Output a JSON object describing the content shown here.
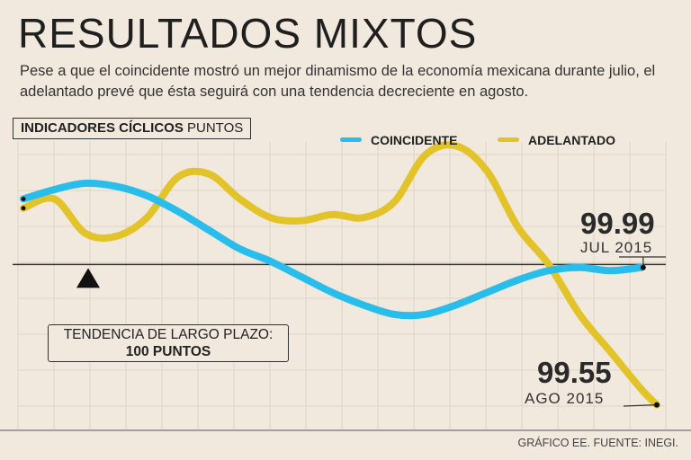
{
  "title": "RESULTADOS MIXTOS",
  "subtitle": "Pese a que el coincidente mostró un mejor dinamismo de la economía mexicana durante julio, el adelantado prevé que ésta seguirá con una tendencia decreciente en agosto.",
  "box_label": {
    "bold": "INDICADORES CÍCLICOS",
    "normal": "PUNTOS"
  },
  "colors": {
    "coincidente": "#29bdec",
    "adelantado": "#e2c32a",
    "reference": "#333333",
    "grid": "#dfd3c4",
    "background": "#f1e8de"
  },
  "trend_box": {
    "line1": "TENDENCIA DE LARGO PLAZO:",
    "line2": "100 PUNTOS"
  },
  "callouts": {
    "coincidente": {
      "value": "99.99",
      "date": "JUL 2015"
    },
    "adelantado": {
      "value": "99.55",
      "date": "AGO 2015"
    }
  },
  "source": "GRÁFICO EE. FUENTE: INEGI.",
  "chart_data": {
    "type": "line",
    "title": "INDICADORES CÍCLICOS PUNTOS",
    "xlabel": "",
    "ylabel": "PUNTOS",
    "ylim": [
      99.5,
      100.45
    ],
    "reference_line": 100,
    "grid": true,
    "legend": "top-right",
    "series": [
      {
        "name": "COINCIDENTE",
        "color": "#29bdec",
        "x": [
          0,
          2,
          4,
          6,
          8,
          10,
          12,
          14,
          16,
          18,
          20,
          22,
          24,
          26,
          28,
          30,
          32,
          34,
          36,
          38,
          40
        ],
        "values": [
          100.21,
          100.24,
          100.26,
          100.25,
          100.22,
          100.17,
          100.11,
          100.05,
          100.01,
          99.96,
          99.91,
          99.87,
          99.84,
          99.84,
          99.87,
          99.91,
          99.95,
          99.98,
          99.99,
          99.98,
          99.99
        ]
      },
      {
        "name": "ADELANTADO",
        "color": "#e2c32a",
        "x": [
          0,
          2,
          4,
          6,
          8,
          10,
          12,
          14,
          16,
          18,
          20,
          22,
          24,
          26,
          28,
          30,
          32,
          34,
          36,
          38,
          40,
          41
        ],
        "values": [
          100.18,
          100.21,
          100.1,
          100.09,
          100.15,
          100.28,
          100.29,
          100.21,
          100.15,
          100.14,
          100.16,
          100.15,
          100.2,
          100.35,
          100.38,
          100.3,
          100.12,
          100.0,
          99.84,
          99.72,
          99.6,
          99.55
        ]
      }
    ]
  }
}
